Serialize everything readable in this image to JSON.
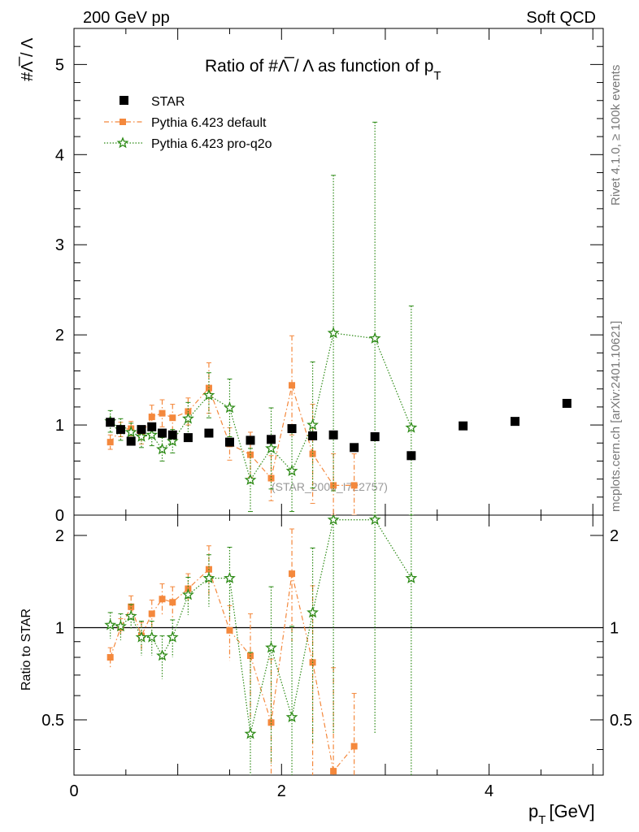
{
  "header": {
    "left": "200 GeV pp",
    "right": "Soft QCD"
  },
  "side_labels": {
    "rivet": "Rivet 4.1.0, ≥ 100k events",
    "mcplots": "mcplots.cern.ch [arXiv:2401.10621]"
  },
  "chart_data": {
    "type": "scatter",
    "title": "Ratio of #Λ̅ / Λ as function of p_T",
    "title_main": "Ratio of #Λ̅ / Λ as function of p",
    "title_sub": "T",
    "watermark": "(STAR_2006_I722757)",
    "xlabel": "p",
    "xlabel_sub": "T",
    "xlabel_unit": "[GeV]",
    "ylabel": "#Λ̅ / Λ",
    "ratio_ylabel": "Ratio to STAR",
    "xlim": [
      0,
      5.1
    ],
    "ylim": [
      0,
      5.4
    ],
    "ratio_ylim": [
      0.33,
      2.33
    ],
    "x_ticks": [
      "0",
      "2",
      "4"
    ],
    "y_ticks": [
      "0",
      "1",
      "2",
      "3",
      "4",
      "5"
    ],
    "ratio_y_ticks": [
      "0.5",
      "1",
      "2"
    ],
    "legend": [
      {
        "name": "STAR",
        "style": "square",
        "color": "#000000"
      },
      {
        "name": "Pythia 6.423 default",
        "style": "dashdot-square",
        "color": "#f4883c"
      },
      {
        "name": "Pythia 6.423 pro-q2o",
        "style": "dotted-star",
        "color": "#2c8a15"
      }
    ],
    "series": [
      {
        "name": "STAR",
        "color": "#000000",
        "marker": "square",
        "x": [
          0.35,
          0.45,
          0.55,
          0.65,
          0.75,
          0.85,
          0.95,
          1.1,
          1.3,
          1.5,
          1.7,
          1.9,
          2.1,
          2.3,
          2.5,
          2.7,
          2.9,
          3.25,
          3.75,
          4.25,
          4.75
        ],
        "y": [
          1.03,
          0.95,
          0.82,
          0.95,
          0.98,
          0.91,
          0.89,
          0.86,
          0.91,
          0.81,
          0.83,
          0.84,
          0.96,
          0.88,
          0.89,
          0.75,
          0.87,
          0.66,
          0.99,
          1.04,
          1.24
        ]
      },
      {
        "name": "Pythia 6.423 default",
        "color": "#f4883c",
        "marker": "square",
        "x": [
          0.35,
          0.45,
          0.55,
          0.65,
          0.75,
          0.85,
          0.95,
          1.1,
          1.3,
          1.5,
          1.7,
          1.9,
          2.1,
          2.3,
          2.5,
          2.7
        ],
        "y": [
          0.81,
          0.95,
          0.96,
          0.89,
          1.09,
          1.13,
          1.08,
          1.15,
          1.41,
          0.79,
          0.67,
          0.41,
          1.44,
          0.68,
          0.33,
          0.33
        ],
        "yerr": [
          0.08,
          0.08,
          0.08,
          0.1,
          0.13,
          0.15,
          0.15,
          0.15,
          0.28,
          0.18,
          0.25,
          0.25,
          0.55,
          0.55,
          0.35,
          0.35
        ],
        "ratio": [
          0.8,
          1.0,
          1.17,
          0.94,
          1.11,
          1.24,
          1.21,
          1.34,
          1.55,
          0.98,
          0.81,
          0.49,
          1.5,
          0.77,
          0.34,
          0.41
        ],
        "ratio_err": [
          0.06,
          0.07,
          0.1,
          0.1,
          0.12,
          0.15,
          0.15,
          0.16,
          0.3,
          0.2,
          0.3,
          0.3,
          0.6,
          0.6,
          0.4,
          0.2
        ]
      },
      {
        "name": "Pythia 6.423 pro-q2o",
        "color": "#2c8a15",
        "marker": "star",
        "x": [
          0.35,
          0.45,
          0.55,
          0.65,
          0.75,
          0.85,
          0.95,
          1.1,
          1.3,
          1.5,
          1.7,
          1.9,
          2.1,
          2.3,
          2.5,
          2.9,
          3.25
        ],
        "y": [
          1.04,
          0.95,
          0.92,
          0.87,
          0.89,
          0.73,
          0.82,
          1.07,
          1.33,
          1.19,
          0.39,
          0.74,
          0.49,
          1.0,
          2.02,
          1.96,
          0.97
        ],
        "yerr": [
          0.12,
          0.12,
          0.1,
          0.12,
          0.12,
          0.13,
          0.13,
          0.18,
          0.25,
          0.32,
          0.35,
          0.45,
          0.45,
          0.7,
          1.75,
          2.4,
          1.35
        ],
        "ratio": [
          1.02,
          1.01,
          1.09,
          0.93,
          0.93,
          0.81,
          0.93,
          1.28,
          1.45,
          1.45,
          0.45,
          0.86,
          0.51,
          1.12,
          2.25,
          2.25,
          1.45
        ],
        "ratio_err": [
          0.1,
          0.1,
          0.1,
          0.12,
          0.12,
          0.13,
          0.13,
          0.18,
          0.28,
          0.38,
          0.38,
          0.5,
          0.5,
          0.7,
          1.8,
          1.8,
          1.5
        ]
      }
    ]
  }
}
